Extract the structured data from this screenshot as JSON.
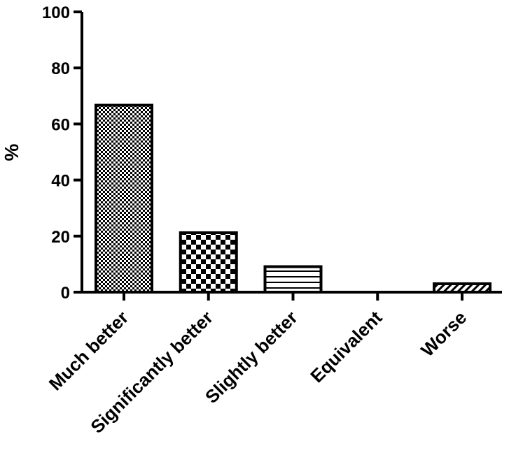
{
  "chart_data": {
    "type": "bar",
    "title": "",
    "xlabel": "",
    "ylabel": "%",
    "ylim": [
      0,
      100
    ],
    "yticks": [
      0,
      20,
      40,
      60,
      80,
      100
    ],
    "grid": false,
    "categories": [
      "Much better",
      "Significantly better",
      "Slightly better",
      "Equivalent",
      "Worse"
    ],
    "values": [
      66.7,
      21.2,
      9.1,
      0,
      3.0
    ],
    "patterns": [
      "fine-checker",
      "coarse-checker",
      "horizontal-lines",
      "none",
      "diagonal-hatch"
    ],
    "colors": {
      "ink": "#000000",
      "fill": "#ffffff"
    }
  }
}
